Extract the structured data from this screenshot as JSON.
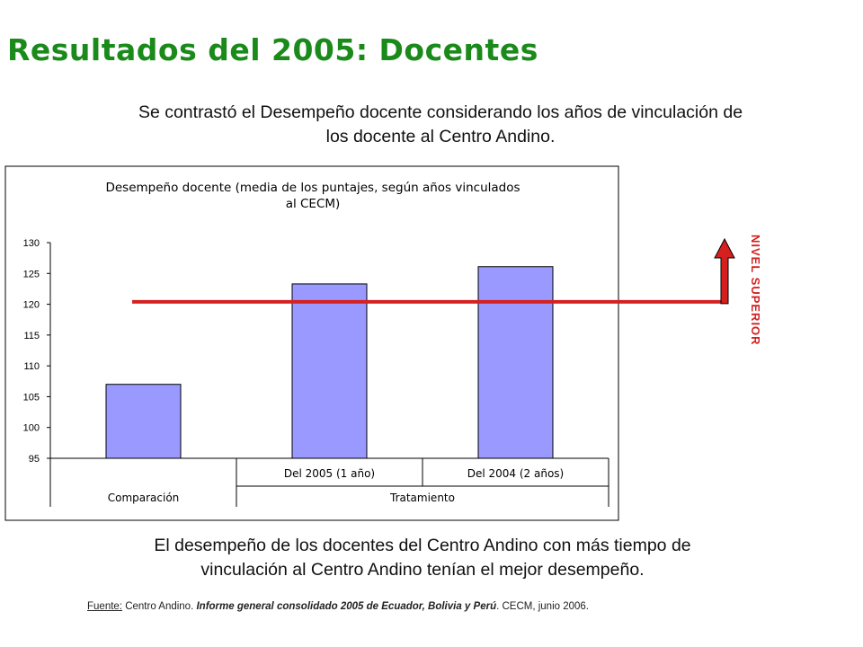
{
  "page": {
    "title": "Resultados del 2005: Docentes",
    "intro_line1": "Se contrastó el Desempeño docente considerando los años de vinculación de",
    "intro_line2": "los docente al Centro Andino.",
    "conclusion_line1": "El desempeño de los docentes del Centro Andino con más tiempo de",
    "conclusion_line2": "vinculación al Centro Andino tenían el mejor desempeño.",
    "source_label": "Fuente:",
    "source_text1": " Centro Andino. ",
    "source_title": "Informe general consolidado 2005 de Ecuador, Bolivia y Perú",
    "source_text2": ". CECM, junio 2006.",
    "level_label": "NIVEL SUPERIOR",
    "colors": {
      "title": "#1a8a1a",
      "bar": "#9999ff",
      "line": "#d62020"
    }
  },
  "chart_data": {
    "type": "bar",
    "title_line1": "Desempeño docente (media de los puntajes, según años vinculados",
    "title_line2": "al CECM)",
    "categories": [
      "",
      "Del 2005 (1 año)",
      "Del 2004 (2 años)"
    ],
    "groups": [
      {
        "label": "Comparación",
        "span": 1
      },
      {
        "label": "Tratamiento",
        "span": 2
      }
    ],
    "values": [
      107,
      123.3,
      126.1
    ],
    "ylim": [
      95,
      130
    ],
    "yticks": [
      95,
      100,
      105,
      110,
      115,
      120,
      125,
      130
    ],
    "grid": false,
    "reference_line": 120.4
  }
}
